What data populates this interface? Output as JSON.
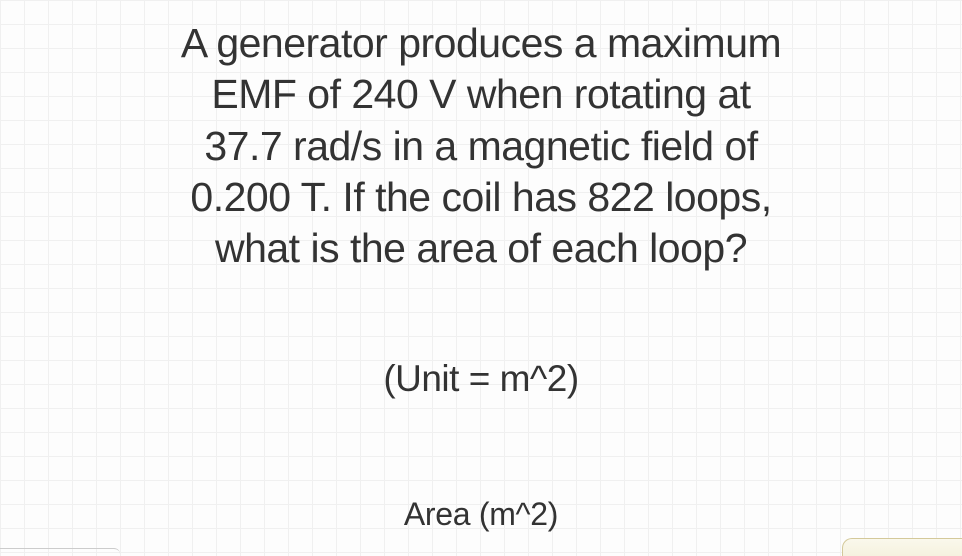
{
  "problem": {
    "line1": "A generator produces a maximum",
    "line2": "EMF of 240 V when rotating at",
    "line3": "37.7 rad/s in a magnetic field of",
    "line4": "0.200 T.  If the coil has 822 loops,",
    "line5": "what is the area of each loop?",
    "text_color": "#333333",
    "font_size": 41
  },
  "unit_hint": {
    "text": "(Unit = m^2)",
    "font_size": 37,
    "text_color": "#333333"
  },
  "answer_label": {
    "text": "Area (m^2)",
    "font_size": 32,
    "text_color": "#333333"
  },
  "grid": {
    "cell_size": 24,
    "line_color": "#f0f0f0",
    "background_color": "#fdfdfd"
  }
}
